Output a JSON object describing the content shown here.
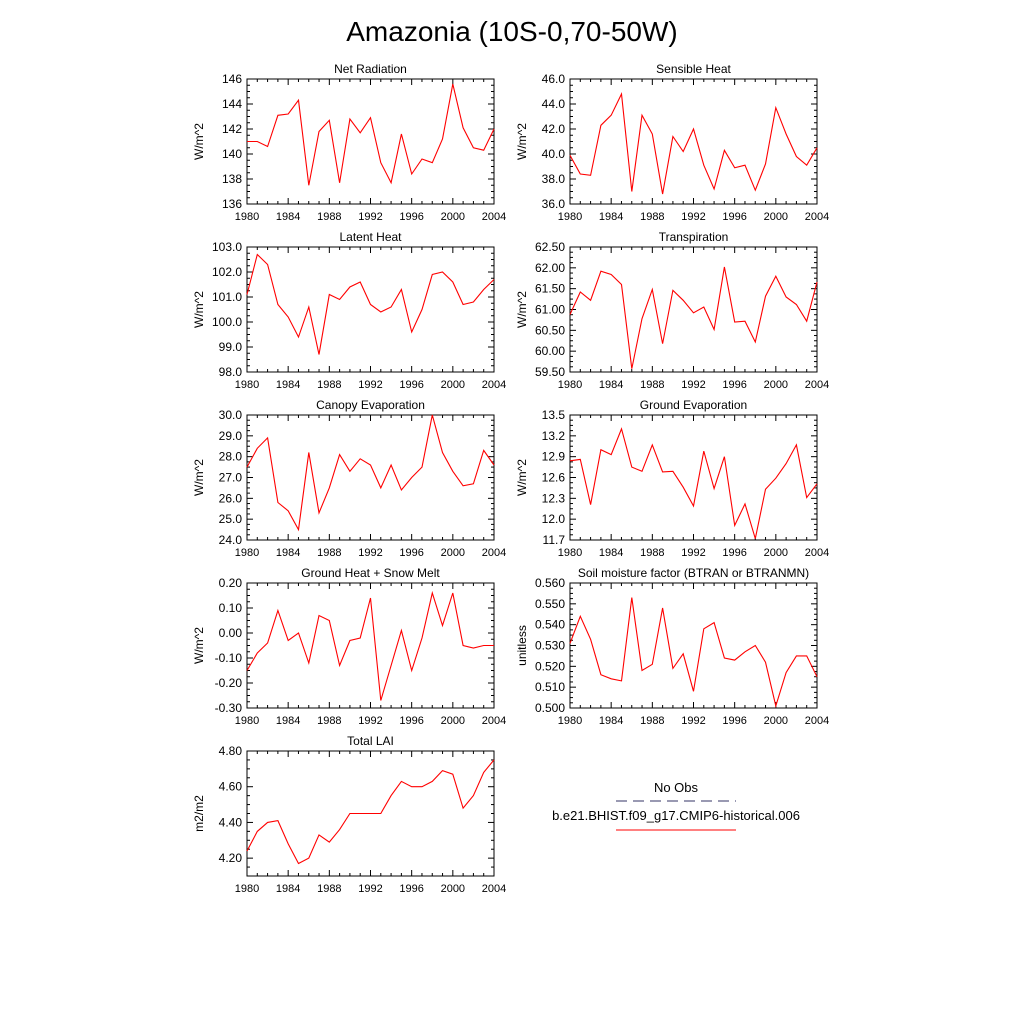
{
  "figure_title": "Amazonia (10S-0,70-50W)",
  "legend": {
    "entries": [
      {
        "label": "No Obs",
        "color": "#333366",
        "style": "dashed"
      },
      {
        "label": "b.e21.BHIST.f09_g17.CMIP6-historical.006",
        "color": "#ff0000",
        "style": "solid"
      }
    ]
  },
  "colors": {
    "series": "#ff0000",
    "axis": "#000000"
  },
  "chart_data": [
    {
      "type": "line",
      "title": "Net Radiation",
      "ylabel": "W/m^2",
      "xlabel": "",
      "x": [
        1980,
        1981,
        1982,
        1983,
        1984,
        1985,
        1986,
        1987,
        1988,
        1989,
        1990,
        1991,
        1992,
        1993,
        1994,
        1995,
        1996,
        1997,
        1998,
        1999,
        2000,
        2001,
        2002,
        2003,
        2004
      ],
      "values": [
        141.0,
        141.0,
        140.6,
        143.1,
        143.2,
        144.3,
        137.5,
        141.8,
        142.7,
        137.7,
        142.8,
        141.7,
        142.9,
        139.3,
        137.7,
        141.6,
        138.4,
        139.6,
        139.3,
        141.2,
        145.6,
        142.1,
        140.5,
        140.3,
        142.0
      ],
      "xlim": [
        1980,
        2004
      ],
      "ylim": [
        136,
        146
      ],
      "xticks": [
        "1980",
        "1984",
        "1988",
        "1992",
        "1996",
        "2000",
        "2004"
      ],
      "yticks": [
        "136",
        "138",
        "140",
        "142",
        "144",
        "146"
      ]
    },
    {
      "type": "line",
      "title": "Sensible Heat",
      "ylabel": "W/m^2",
      "xlabel": "",
      "x": [
        1980,
        1981,
        1982,
        1983,
        1984,
        1985,
        1986,
        1987,
        1988,
        1989,
        1990,
        1991,
        1992,
        1993,
        1994,
        1995,
        1996,
        1997,
        1998,
        1999,
        2000,
        2001,
        2002,
        2003,
        2004
      ],
      "values": [
        39.9,
        38.4,
        38.3,
        42.3,
        43.1,
        44.8,
        37.0,
        43.1,
        41.6,
        36.8,
        41.4,
        40.2,
        42.0,
        39.1,
        37.2,
        40.3,
        38.9,
        39.1,
        37.1,
        39.2,
        43.7,
        41.6,
        39.8,
        39.1,
        40.5
      ],
      "xlim": [
        1980,
        2004
      ],
      "ylim": [
        36.0,
        46.0
      ],
      "xticks": [
        "1980",
        "1984",
        "1988",
        "1992",
        "1996",
        "2000",
        "2004"
      ],
      "yticks": [
        "36.0",
        "38.0",
        "40.0",
        "42.0",
        "44.0",
        "46.0"
      ]
    },
    {
      "type": "line",
      "title": "Latent Heat",
      "ylabel": "W/m^2",
      "xlabel": "",
      "x": [
        1980,
        1981,
        1982,
        1983,
        1984,
        1985,
        1986,
        1987,
        1988,
        1989,
        1990,
        1991,
        1992,
        1993,
        1994,
        1995,
        1996,
        1997,
        1998,
        1999,
        2000,
        2001,
        2002,
        2003,
        2004
      ],
      "values": [
        101.1,
        102.7,
        102.3,
        100.7,
        100.2,
        99.4,
        100.6,
        98.7,
        101.1,
        100.9,
        101.4,
        101.6,
        100.7,
        100.4,
        100.6,
        101.3,
        99.6,
        100.5,
        101.9,
        102.0,
        101.6,
        100.7,
        100.8,
        101.3,
        101.7
      ],
      "xlim": [
        1980,
        2004
      ],
      "ylim": [
        98.0,
        103.0
      ],
      "xticks": [
        "1980",
        "1984",
        "1988",
        "1992",
        "1996",
        "2000",
        "2004"
      ],
      "yticks": [
        "98.0",
        "99.0",
        "100.0",
        "101.0",
        "102.0",
        "103.0"
      ]
    },
    {
      "type": "line",
      "title": "Transpiration",
      "ylabel": "W/m^2",
      "xlabel": "",
      "x": [
        1980,
        1981,
        1982,
        1983,
        1984,
        1985,
        1986,
        1987,
        1988,
        1989,
        1990,
        1991,
        1992,
        1993,
        1994,
        1995,
        1996,
        1997,
        1998,
        1999,
        2000,
        2001,
        2002,
        2003,
        2004
      ],
      "values": [
        60.88,
        61.42,
        61.22,
        61.92,
        61.84,
        61.6,
        59.58,
        60.78,
        61.48,
        60.18,
        61.46,
        61.22,
        60.92,
        61.06,
        60.52,
        62.02,
        60.7,
        60.72,
        60.22,
        61.32,
        61.8,
        61.3,
        61.12,
        60.72,
        61.66
      ],
      "xlim": [
        1980,
        2004
      ],
      "ylim": [
        59.5,
        62.5
      ],
      "xticks": [
        "1980",
        "1984",
        "1988",
        "1992",
        "1996",
        "2000",
        "2004"
      ],
      "yticks": [
        "59.50",
        "60.00",
        "60.50",
        "61.00",
        "61.50",
        "62.00",
        "62.50"
      ]
    },
    {
      "type": "line",
      "title": "Canopy Evaporation",
      "ylabel": "W/m^2",
      "xlabel": "",
      "x": [
        1980,
        1981,
        1982,
        1983,
        1984,
        1985,
        1986,
        1987,
        1988,
        1989,
        1990,
        1991,
        1992,
        1993,
        1994,
        1995,
        1996,
        1997,
        1998,
        1999,
        2000,
        2001,
        2002,
        2003,
        2004
      ],
      "values": [
        27.5,
        28.4,
        28.9,
        25.8,
        25.4,
        24.5,
        28.2,
        25.3,
        26.5,
        28.1,
        27.3,
        27.9,
        27.6,
        26.5,
        27.6,
        26.4,
        27.0,
        27.5,
        30.0,
        28.2,
        27.3,
        26.6,
        26.7,
        28.3,
        27.6
      ],
      "xlim": [
        1980,
        2004
      ],
      "ylim": [
        24.0,
        30.0
      ],
      "xticks": [
        "1980",
        "1984",
        "1988",
        "1992",
        "1996",
        "2000",
        "2004"
      ],
      "yticks": [
        "24.0",
        "25.0",
        "26.0",
        "27.0",
        "28.0",
        "29.0",
        "30.0"
      ]
    },
    {
      "type": "line",
      "title": "Ground Evaporation",
      "ylabel": "W/m^2",
      "xlabel": "",
      "x": [
        1980,
        1981,
        1982,
        1983,
        1984,
        1985,
        1986,
        1987,
        1988,
        1989,
        1990,
        1991,
        1992,
        1993,
        1994,
        1995,
        1996,
        1997,
        1998,
        1999,
        2000,
        2001,
        2002,
        2003,
        2004
      ],
      "values": [
        12.84,
        12.86,
        12.21,
        13.0,
        12.93,
        13.3,
        12.75,
        12.69,
        13.07,
        12.68,
        12.69,
        12.46,
        12.19,
        12.98,
        12.44,
        12.9,
        11.91,
        12.22,
        11.72,
        12.43,
        12.59,
        12.8,
        13.07,
        12.31,
        12.51
      ],
      "xlim": [
        1980,
        2004
      ],
      "ylim": [
        11.7,
        13.5
      ],
      "xticks": [
        "1980",
        "1984",
        "1988",
        "1992",
        "1996",
        "2000",
        "2004"
      ],
      "yticks": [
        "11.7",
        "12.0",
        "12.3",
        "12.6",
        "12.9",
        "13.2",
        "13.5"
      ]
    },
    {
      "type": "line",
      "title": "Ground Heat + Snow Melt",
      "ylabel": "W/m^2",
      "xlabel": "",
      "x": [
        1980,
        1981,
        1982,
        1983,
        1984,
        1985,
        1986,
        1987,
        1988,
        1989,
        1990,
        1991,
        1992,
        1993,
        1994,
        1995,
        1996,
        1997,
        1998,
        1999,
        2000,
        2001,
        2002,
        2003,
        2004
      ],
      "values": [
        -0.15,
        -0.08,
        -0.04,
        0.09,
        -0.03,
        0.0,
        -0.12,
        0.07,
        0.05,
        -0.13,
        -0.03,
        -0.02,
        0.14,
        -0.27,
        -0.13,
        0.01,
        -0.15,
        -0.02,
        0.16,
        0.03,
        0.16,
        -0.05,
        -0.06,
        -0.05,
        -0.05
      ],
      "xlim": [
        1980,
        2004
      ],
      "ylim": [
        -0.3,
        0.2
      ],
      "xticks": [
        "1980",
        "1984",
        "1988",
        "1992",
        "1996",
        "2000",
        "2004"
      ],
      "yticks": [
        "-0.30",
        "-0.20",
        "-0.10",
        "0.00",
        "0.10",
        "0.20"
      ]
    },
    {
      "type": "line",
      "title": "Soil moisture factor (BTRAN or BTRANMN)",
      "ylabel": "unitless",
      "xlabel": "",
      "x": [
        1980,
        1981,
        1982,
        1983,
        1984,
        1985,
        1986,
        1987,
        1988,
        1989,
        1990,
        1991,
        1992,
        1993,
        1994,
        1995,
        1996,
        1997,
        1998,
        1999,
        2000,
        2001,
        2002,
        2003,
        2004
      ],
      "values": [
        0.531,
        0.544,
        0.533,
        0.516,
        0.514,
        0.513,
        0.553,
        0.518,
        0.521,
        0.548,
        0.519,
        0.526,
        0.508,
        0.538,
        0.541,
        0.524,
        0.523,
        0.527,
        0.53,
        0.522,
        0.501,
        0.517,
        0.525,
        0.525,
        0.515
      ],
      "xlim": [
        1980,
        2004
      ],
      "ylim": [
        0.5,
        0.56
      ],
      "xticks": [
        "1980",
        "1984",
        "1988",
        "1992",
        "1996",
        "2000",
        "2004"
      ],
      "yticks": [
        "0.500",
        "0.510",
        "0.520",
        "0.530",
        "0.540",
        "0.550",
        "0.560"
      ]
    },
    {
      "type": "line",
      "title": "Total LAI",
      "ylabel": "m2/m2",
      "xlabel": "",
      "x": [
        1980,
        1981,
        1982,
        1983,
        1984,
        1985,
        1986,
        1987,
        1988,
        1989,
        1990,
        1991,
        1992,
        1993,
        1994,
        1995,
        1996,
        1997,
        1998,
        1999,
        2000,
        2001,
        2002,
        2003,
        2004
      ],
      "values": [
        4.24,
        4.35,
        4.4,
        4.41,
        4.28,
        4.17,
        4.2,
        4.33,
        4.29,
        4.36,
        4.45,
        4.45,
        4.45,
        4.45,
        4.55,
        4.63,
        4.6,
        4.6,
        4.63,
        4.69,
        4.67,
        4.48,
        4.55,
        4.68,
        4.75
      ],
      "xlim": [
        1980,
        2004
      ],
      "ylim": [
        4.1,
        4.8
      ],
      "xticks": [
        "1980",
        "1984",
        "1988",
        "1992",
        "1996",
        "2000",
        "2004"
      ],
      "yticks": [
        "4.20",
        "4.40",
        "4.60",
        "4.80"
      ]
    }
  ]
}
